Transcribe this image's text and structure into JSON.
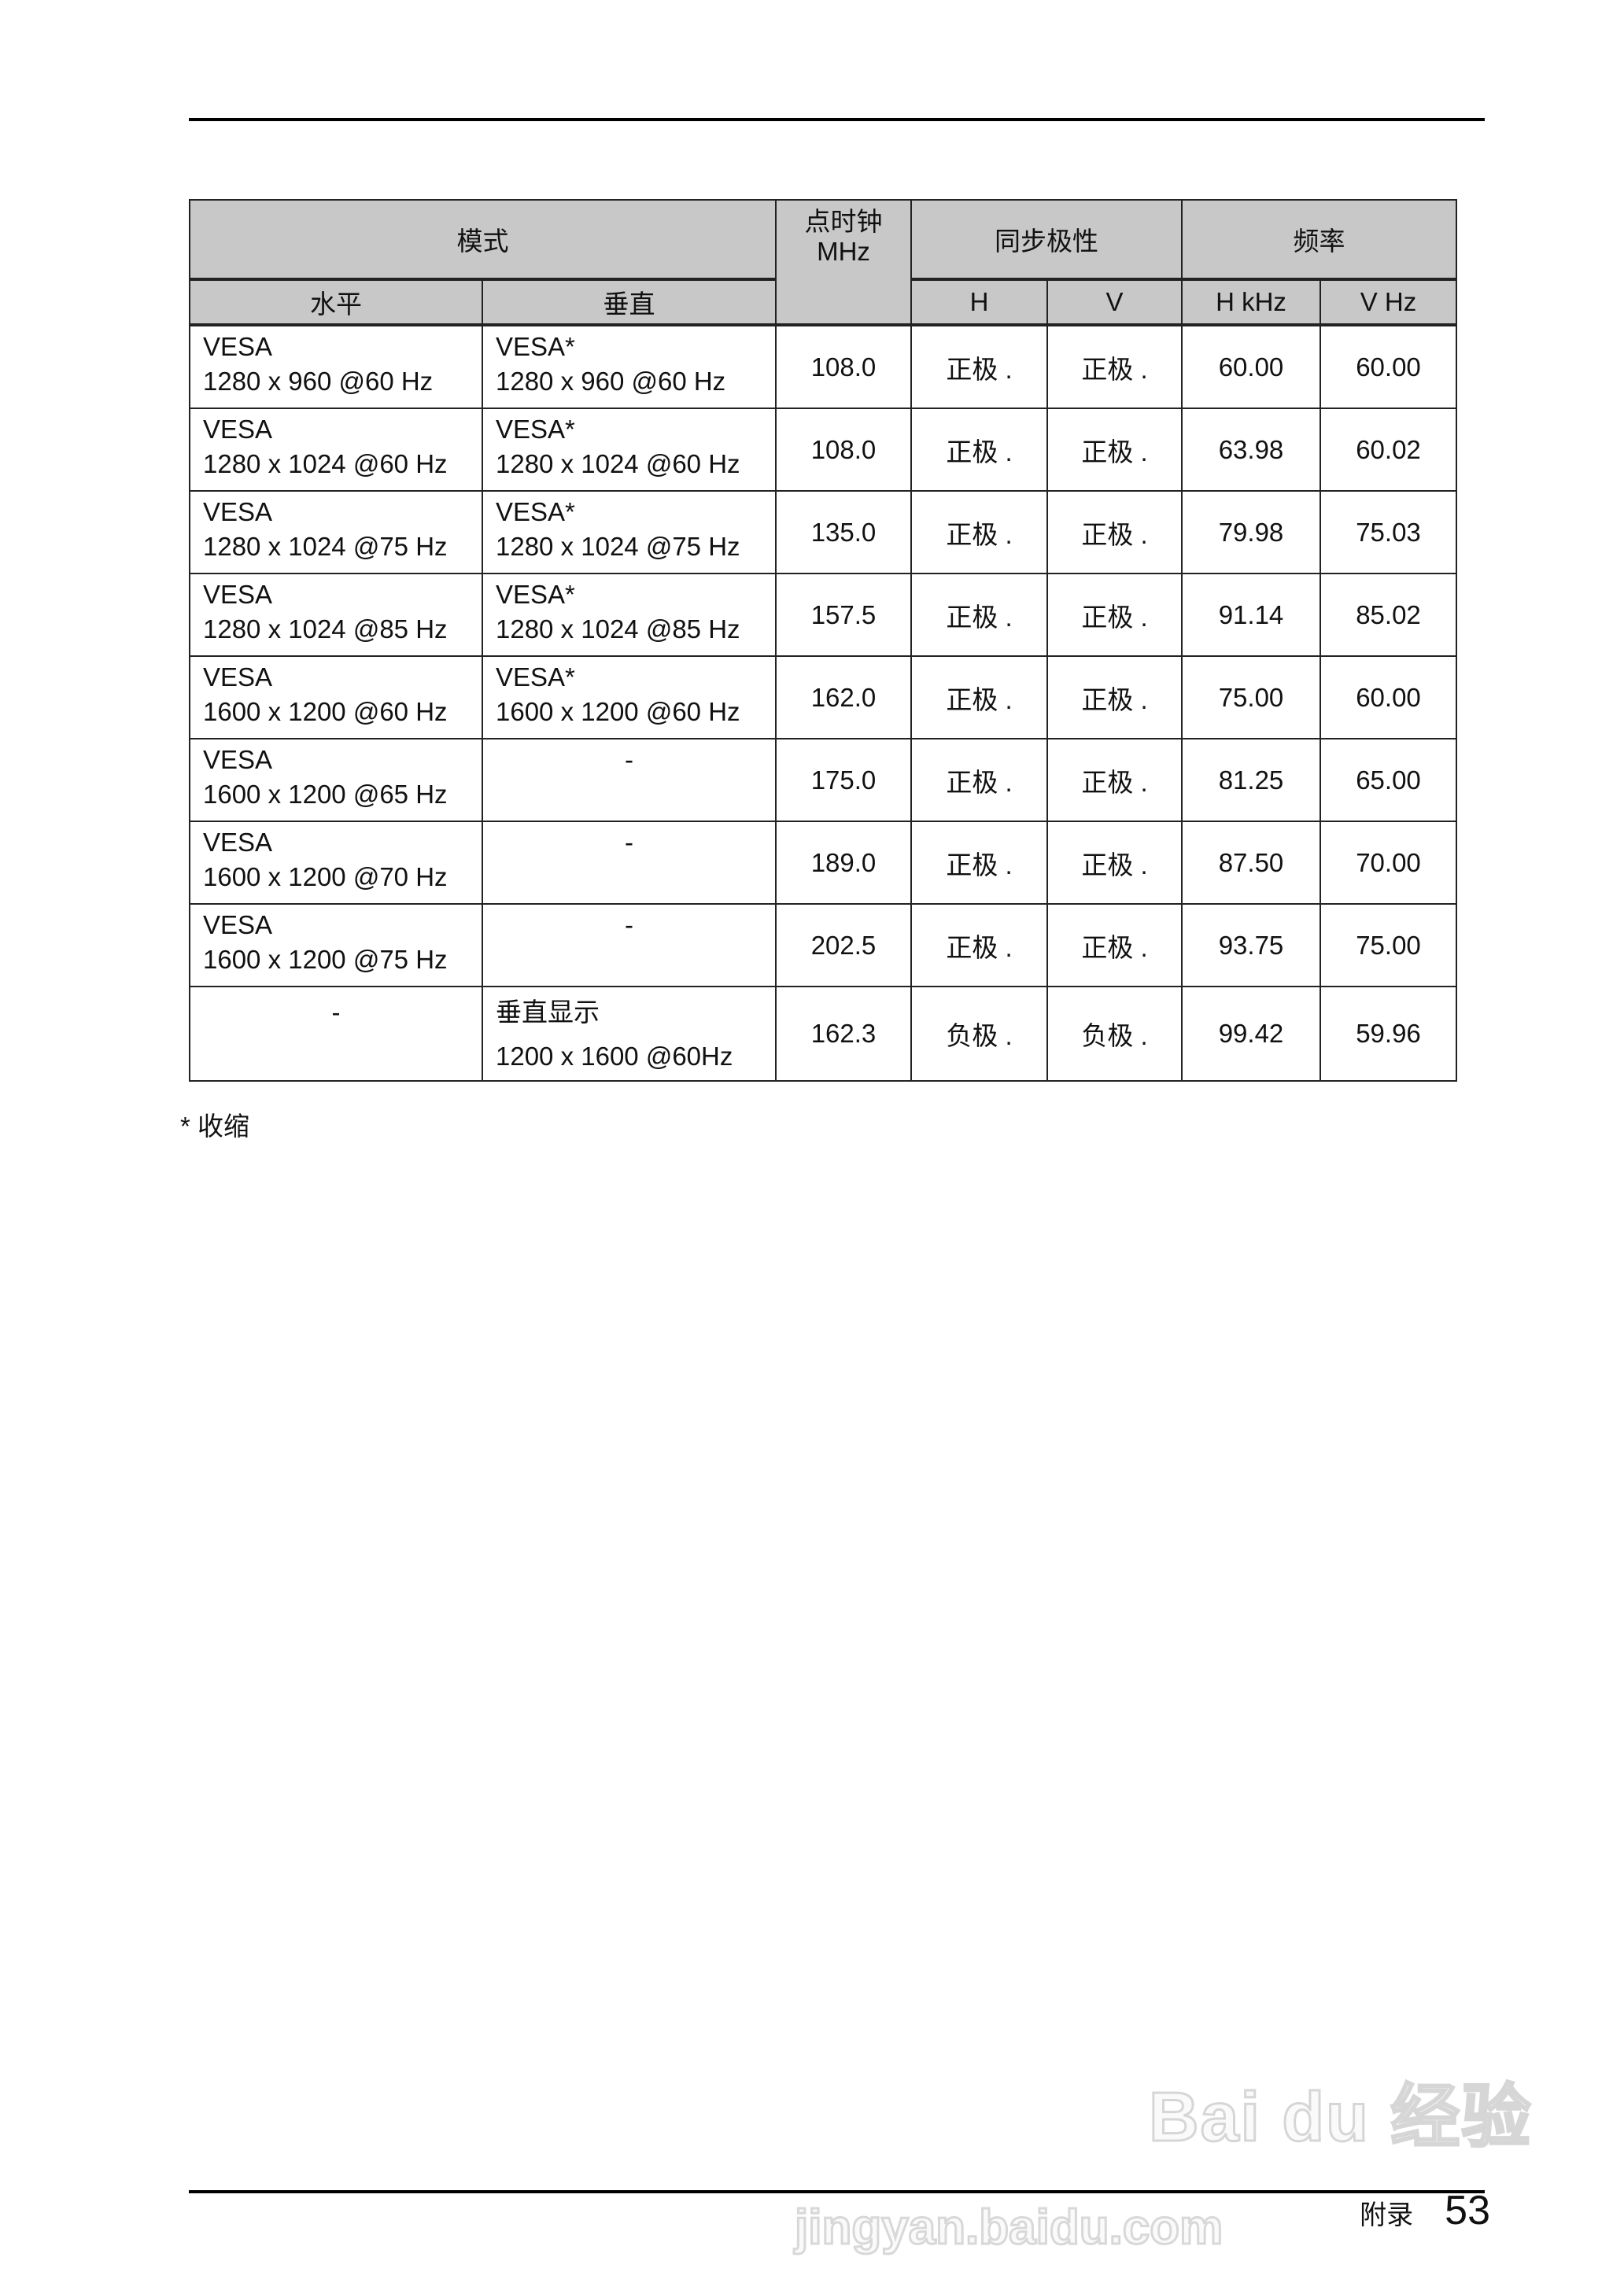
{
  "header_group": {
    "mode": "模式",
    "dot_clock": "点时钟",
    "dot_clock_unit": "MHz",
    "sync_polarity": "同步极性",
    "frequency": "频率"
  },
  "sub_header": {
    "horizontal": "水平",
    "vertical": "垂直",
    "h": "H",
    "v": "V",
    "h_khz": "H kHz",
    "v_hz": "V Hz"
  },
  "rows": [
    {
      "h_mode": [
        "VESA",
        "1280 x 960 @60 Hz"
      ],
      "v_mode": [
        "VESA*",
        "1280 x 960 @60 Hz"
      ],
      "clock": "108.0",
      "h_pol": "正极 .",
      "v_pol": "正极 .",
      "h_khz": "60.00",
      "v_hz": "60.00"
    },
    {
      "h_mode": [
        "VESA",
        "1280 x 1024 @60 Hz"
      ],
      "v_mode": [
        "VESA*",
        "1280 x 1024 @60 Hz"
      ],
      "clock": "108.0",
      "h_pol": "正极 .",
      "v_pol": "正极 .",
      "h_khz": "63.98",
      "v_hz": "60.02"
    },
    {
      "h_mode": [
        "VESA",
        "1280 x 1024 @75 Hz"
      ],
      "v_mode": [
        "VESA*",
        "1280 x 1024 @75 Hz"
      ],
      "clock": "135.0",
      "h_pol": "正极 .",
      "v_pol": "正极 .",
      "h_khz": "79.98",
      "v_hz": "75.03"
    },
    {
      "h_mode": [
        "VESA",
        "1280 x 1024 @85 Hz"
      ],
      "v_mode": [
        "VESA*",
        "1280 x 1024 @85 Hz"
      ],
      "clock": "157.5",
      "h_pol": "正极 .",
      "v_pol": "正极 .",
      "h_khz": "91.14",
      "v_hz": "85.02"
    },
    {
      "h_mode": [
        "VESA",
        "1600 x 1200 @60 Hz"
      ],
      "v_mode": [
        "VESA*",
        "1600 x 1200 @60 Hz"
      ],
      "clock": "162.0",
      "h_pol": "正极 .",
      "v_pol": "正极 .",
      "h_khz": "75.00",
      "v_hz": "60.00"
    },
    {
      "h_mode": [
        "VESA",
        "1600 x 1200 @65 Hz"
      ],
      "v_mode": [
        "-"
      ],
      "clock": "175.0",
      "h_pol": "正极 .",
      "v_pol": "正极 .",
      "h_khz": "81.25",
      "v_hz": "65.00"
    },
    {
      "h_mode": [
        "VESA",
        "1600 x 1200 @70 Hz"
      ],
      "v_mode": [
        "-"
      ],
      "clock": "189.0",
      "h_pol": "正极 .",
      "v_pol": "正极 .",
      "h_khz": "87.50",
      "v_hz": "70.00"
    },
    {
      "h_mode": [
        "VESA",
        "1600 x 1200 @75 Hz"
      ],
      "v_mode": [
        "-"
      ],
      "clock": "202.5",
      "h_pol": "正极 .",
      "v_pol": "正极 .",
      "h_khz": "93.75",
      "v_hz": "75.00"
    },
    {
      "h_mode": [
        "-"
      ],
      "v_mode": [
        "垂直显示",
        "1200 x 1600 @60Hz"
      ],
      "clock": "162.3",
      "h_pol": "负极 .",
      "v_pol": "负极 .",
      "h_khz": "99.42",
      "v_hz": "59.96"
    }
  ],
  "footnote": "* 收缩",
  "footer": {
    "section": "附录",
    "page": "53"
  },
  "watermark": {
    "logo": "Bai du 经验",
    "url": "jingyan.baidu.com"
  }
}
